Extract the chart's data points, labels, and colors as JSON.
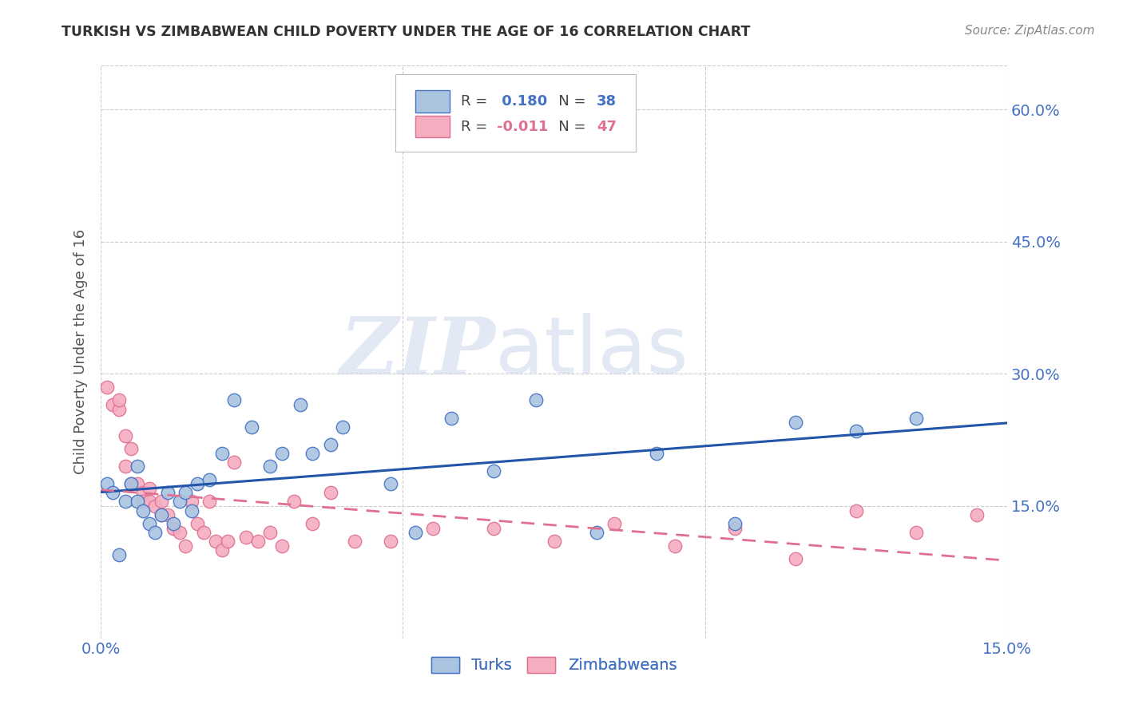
{
  "title": "TURKISH VS ZIMBABWEAN CHILD POVERTY UNDER THE AGE OF 16 CORRELATION CHART",
  "source": "Source: ZipAtlas.com",
  "ylabel": "Child Poverty Under the Age of 16",
  "xlim": [
    0.0,
    0.15
  ],
  "ylim": [
    0.0,
    0.65
  ],
  "x_ticks": [
    0.0,
    0.05,
    0.1,
    0.15
  ],
  "x_tick_labels": [
    "0.0%",
    "",
    "",
    "15.0%"
  ],
  "y_ticks_right": [
    0.0,
    0.15,
    0.3,
    0.45,
    0.6
  ],
  "y_tick_labels_right": [
    "",
    "15.0%",
    "30.0%",
    "45.0%",
    "60.0%"
  ],
  "turks_R": 0.18,
  "turks_N": 38,
  "zimbabweans_R": -0.011,
  "zimbabweans_N": 47,
  "color_turks_fill": "#aac4e0",
  "color_zimbabweans_fill": "#f5adc0",
  "color_turks_edge": "#4472c4",
  "color_zimbabweans_edge": "#e07090",
  "color_turks_line": "#2255aa",
  "color_zimbabweans_line": "#e07090",
  "color_accent": "#4472c4",
  "watermark_zip": "ZIP",
  "watermark_atlas": "atlas",
  "turks_x": [
    0.001,
    0.002,
    0.003,
    0.004,
    0.005,
    0.006,
    0.006,
    0.007,
    0.008,
    0.009,
    0.01,
    0.011,
    0.012,
    0.013,
    0.014,
    0.015,
    0.016,
    0.018,
    0.02,
    0.022,
    0.025,
    0.028,
    0.03,
    0.033,
    0.035,
    0.038,
    0.04,
    0.048,
    0.052,
    0.058,
    0.065,
    0.072,
    0.082,
    0.092,
    0.105,
    0.115,
    0.125,
    0.135
  ],
  "turks_y": [
    0.175,
    0.165,
    0.095,
    0.155,
    0.175,
    0.195,
    0.155,
    0.145,
    0.13,
    0.12,
    0.14,
    0.165,
    0.13,
    0.155,
    0.165,
    0.145,
    0.175,
    0.18,
    0.21,
    0.27,
    0.24,
    0.195,
    0.21,
    0.265,
    0.21,
    0.22,
    0.24,
    0.175,
    0.12,
    0.25,
    0.19,
    0.27,
    0.12,
    0.21,
    0.13,
    0.245,
    0.235,
    0.25
  ],
  "zimbabweans_x": [
    0.001,
    0.002,
    0.003,
    0.003,
    0.004,
    0.004,
    0.005,
    0.005,
    0.006,
    0.007,
    0.007,
    0.008,
    0.008,
    0.009,
    0.01,
    0.01,
    0.011,
    0.012,
    0.013,
    0.014,
    0.015,
    0.016,
    0.017,
    0.018,
    0.019,
    0.02,
    0.021,
    0.022,
    0.024,
    0.026,
    0.028,
    0.03,
    0.032,
    0.035,
    0.038,
    0.042,
    0.048,
    0.055,
    0.065,
    0.075,
    0.085,
    0.095,
    0.105,
    0.115,
    0.125,
    0.135,
    0.145
  ],
  "zimbabweans_y": [
    0.285,
    0.265,
    0.26,
    0.27,
    0.23,
    0.195,
    0.175,
    0.215,
    0.175,
    0.165,
    0.155,
    0.155,
    0.17,
    0.15,
    0.14,
    0.155,
    0.14,
    0.125,
    0.12,
    0.105,
    0.155,
    0.13,
    0.12,
    0.155,
    0.11,
    0.1,
    0.11,
    0.2,
    0.115,
    0.11,
    0.12,
    0.105,
    0.155,
    0.13,
    0.165,
    0.11,
    0.11,
    0.125,
    0.125,
    0.11,
    0.13,
    0.105,
    0.125,
    0.09,
    0.145,
    0.12,
    0.14
  ]
}
